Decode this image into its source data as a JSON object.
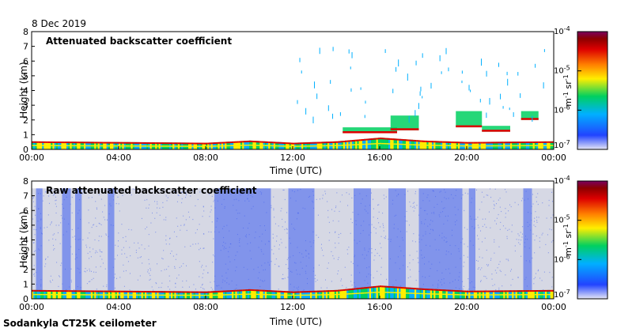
{
  "date_label": "8 Dec 2019",
  "footer_label": "Sodankyla CT25K ceilometer",
  "colors": {
    "background": "#ffffff",
    "axis": "#000000",
    "raw_noise_background": "#d6d8e4",
    "noise_blue": "#3c5cf0",
    "colormap": [
      "#e6e6f5",
      "#2244ff",
      "#00b0ff",
      "#00d060",
      "#ffee00",
      "#ff7f00",
      "#dd0000",
      "#8b0000",
      "#7a0060"
    ]
  },
  "chart_data": [
    {
      "type": "heatmap",
      "title": "Attenuated backscatter coefficient",
      "xlabel": "Time (UTC)",
      "ylabel": "Height (km)",
      "x_ticks": [
        "00:00",
        "04:00",
        "08:00",
        "12:00",
        "16:00",
        "20:00",
        "00:00"
      ],
      "x_range_hours": [
        0,
        24
      ],
      "y_ticks": [
        "0",
        "1",
        "2",
        "3",
        "4",
        "5",
        "6",
        "7",
        "8"
      ],
      "y_range_km": [
        0,
        8
      ],
      "colorbar": {
        "ticks": [
          "10^-7",
          "10^-6",
          "10^-5",
          "10^-4"
        ],
        "tick_exponents": [
          "-7",
          "-6",
          "-5",
          "-4"
        ],
        "label_base": "m",
        "label_exp1": "-1",
        "label_unit": "sr",
        "label_exp2": "-1",
        "scale": "log"
      },
      "features": {
        "boundary_layer_top_km": [
          [
            0,
            0.55
          ],
          [
            4,
            0.5
          ],
          [
            8,
            0.45
          ],
          [
            10,
            0.6
          ],
          [
            12,
            0.45
          ],
          [
            14,
            0.55
          ],
          [
            16,
            0.8
          ],
          [
            18,
            0.6
          ],
          [
            20,
            0.5
          ],
          [
            24,
            0.55
          ]
        ],
        "cloud_layers": [
          {
            "start_h": 14.3,
            "end_h": 16.8,
            "base_km": 1.1,
            "top_km": 1.5
          },
          {
            "start_h": 16.5,
            "end_h": 17.8,
            "base_km": 1.3,
            "top_km": 2.3
          },
          {
            "start_h": 19.5,
            "end_h": 20.7,
            "base_km": 1.5,
            "top_km": 2.6
          },
          {
            "start_h": 20.7,
            "end_h": 22.0,
            "base_km": 1.2,
            "top_km": 1.6
          },
          {
            "start_h": 22.5,
            "end_h": 23.3,
            "base_km": 2.0,
            "top_km": 2.6
          }
        ]
      }
    },
    {
      "type": "heatmap",
      "title": "Raw attenuated backscatter coefficient",
      "xlabel": "Time (UTC)",
      "ylabel": "Height (km)",
      "x_ticks": [
        "00:00",
        "04:00",
        "08:00",
        "12:00",
        "16:00",
        "20:00",
        "00:00"
      ],
      "x_range_hours": [
        0,
        24
      ],
      "y_ticks": [
        "0",
        "1",
        "2",
        "3",
        "4",
        "5",
        "6",
        "7",
        "8"
      ],
      "y_range_km": [
        0,
        8
      ],
      "colorbar": {
        "ticks": [
          "10^-7",
          "10^-6",
          "10^-5",
          "10^-4"
        ],
        "tick_exponents": [
          "-7",
          "-6",
          "-5",
          "-4"
        ],
        "label_base": "m",
        "label_exp1": "-1",
        "label_unit": "sr",
        "label_exp2": "-1",
        "scale": "log"
      },
      "features": {
        "noise_top_km": 7.5,
        "noise_bands_hours": [
          [
            0.2,
            0.5
          ],
          [
            1.4,
            1.8
          ],
          [
            2.0,
            2.3
          ],
          [
            3.5,
            3.8
          ],
          [
            8.4,
            11.0
          ],
          [
            11.8,
            13.0
          ],
          [
            14.8,
            15.6
          ],
          [
            16.4,
            17.2
          ],
          [
            17.8,
            19.8
          ],
          [
            20.1,
            20.4
          ],
          [
            22.6,
            23.0
          ]
        ],
        "boundary_layer_top_km": [
          [
            0,
            0.6
          ],
          [
            4,
            0.55
          ],
          [
            8,
            0.5
          ],
          [
            10,
            0.65
          ],
          [
            12,
            0.5
          ],
          [
            14,
            0.6
          ],
          [
            16,
            0.9
          ],
          [
            18,
            0.7
          ],
          [
            20,
            0.55
          ],
          [
            24,
            0.6
          ]
        ]
      }
    }
  ]
}
